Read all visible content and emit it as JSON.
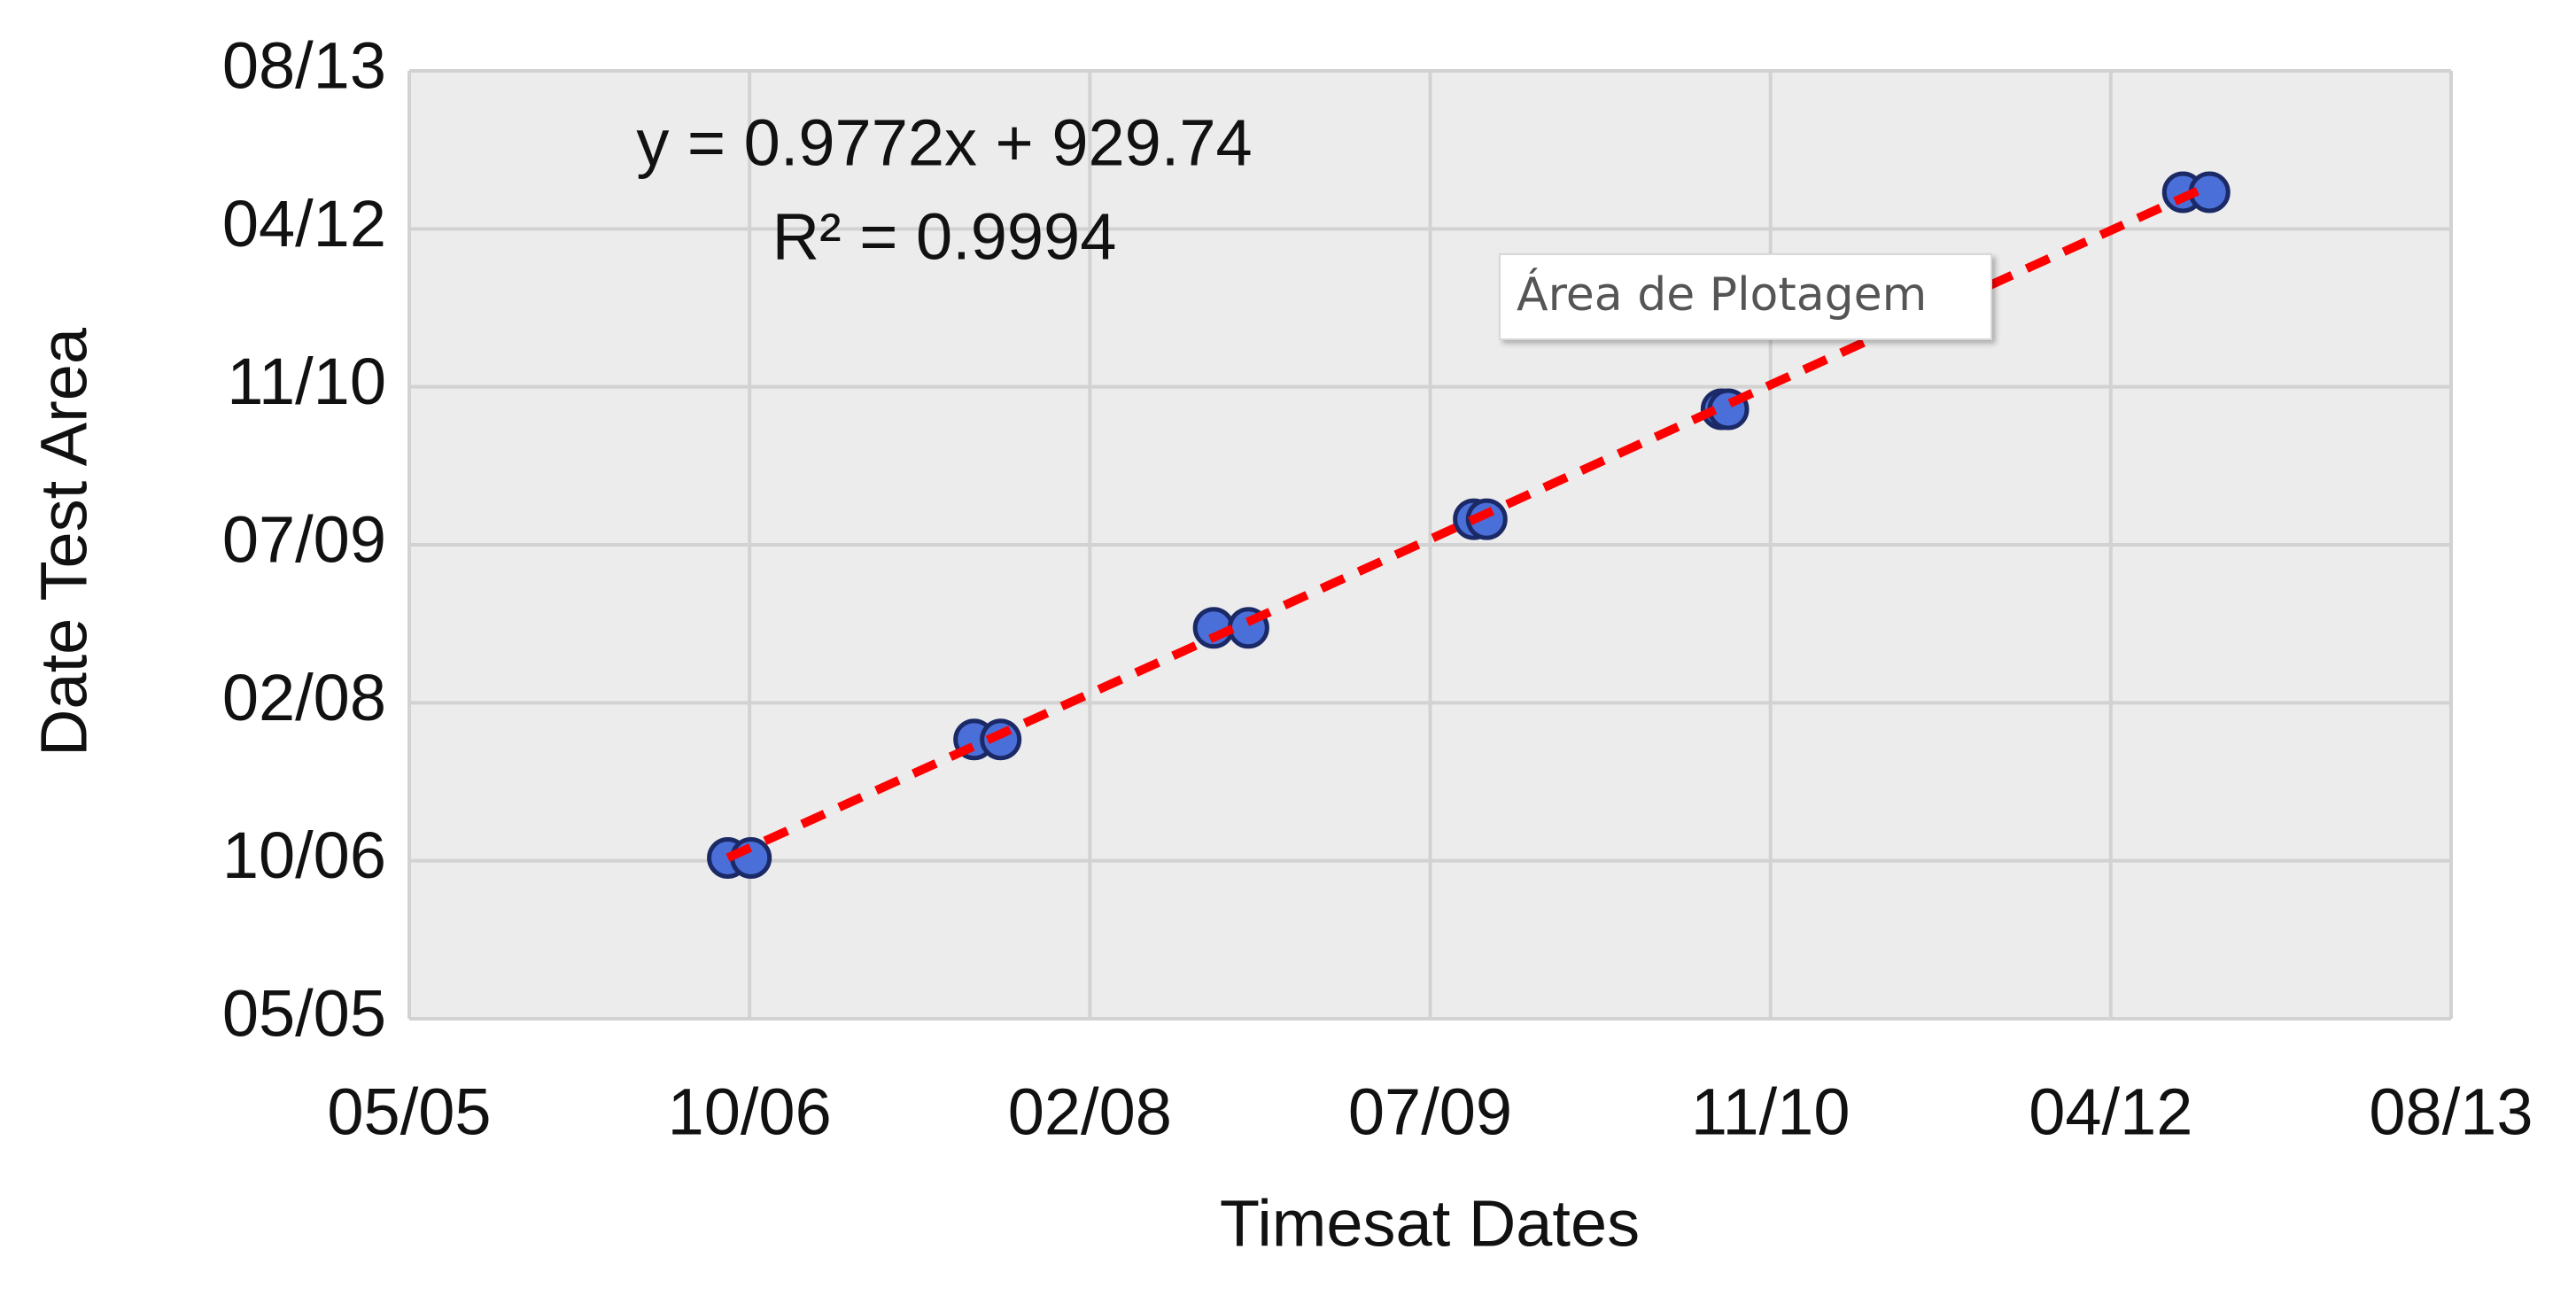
{
  "chart_data": {
    "type": "scatter",
    "xlabel": "Timesat Dates",
    "ylabel": "Date Test Area",
    "x": [
      38968,
      39002,
      39330,
      39369,
      39682,
      39733,
      40064,
      40083,
      40428,
      40438,
      41106,
      41145
    ],
    "values": [
      39009,
      39009,
      39384,
      39384,
      39737,
      39737,
      40081,
      40081,
      40429,
      40429,
      41116,
      41116
    ],
    "color": "#4a6fd8",
    "edge_color": "#1b2a66",
    "xlim": [
      38500,
      41500
    ],
    "ylim": [
      38500,
      41500
    ],
    "xticks": [
      {
        "value": 38500,
        "label": "05/05"
      },
      {
        "value": 39000,
        "label": "10/06"
      },
      {
        "value": 39500,
        "label": "02/08"
      },
      {
        "value": 40000,
        "label": "07/09"
      },
      {
        "value": 40500,
        "label": "11/10"
      },
      {
        "value": 41000,
        "label": "04/12"
      },
      {
        "value": 41500,
        "label": "08/13"
      }
    ],
    "yticks": [
      {
        "value": 38500,
        "label": "05/05"
      },
      {
        "value": 39000,
        "label": "10/06"
      },
      {
        "value": 39500,
        "label": "02/08"
      },
      {
        "value": 40000,
        "label": "07/09"
      },
      {
        "value": 40500,
        "label": "11/10"
      },
      {
        "value": 41000,
        "label": "04/12"
      },
      {
        "value": 41500,
        "label": "08/13"
      }
    ],
    "grid": true,
    "trendline": {
      "slope": 0.9772,
      "intercept": 929.74,
      "color": "#ff0000",
      "equation": "y = 0.9772x + 929.74",
      "r2": "R² = 0.9994"
    },
    "tooltip": "Área de Plotagem"
  }
}
